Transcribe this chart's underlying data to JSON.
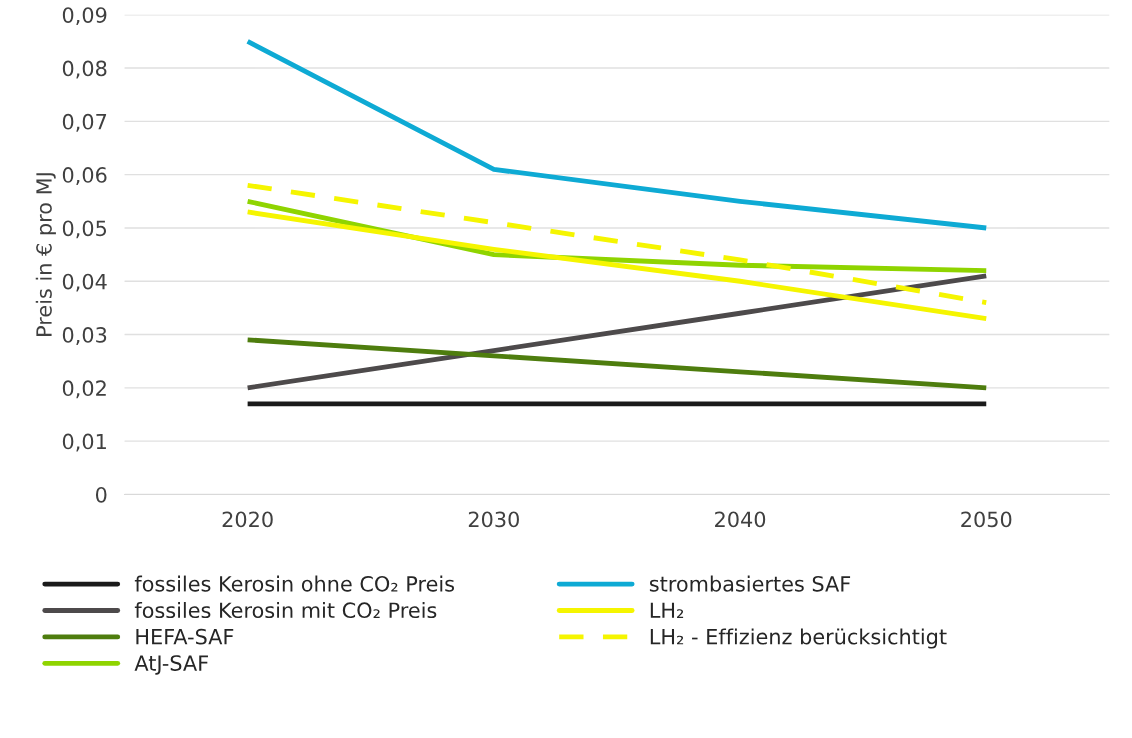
{
  "chart_data": {
    "type": "line",
    "ylabel": "Preis in € pro MJ",
    "categories": [
      "2020",
      "2030",
      "2040",
      "2050"
    ],
    "series": [
      {
        "name": "fossiles Kerosin ohne CO₂ Preis",
        "color": "#1a1a1a",
        "values": [
          0.017,
          0.017,
          0.017,
          0.017
        ]
      },
      {
        "name": "fossiles Kerosin mit CO₂ Preis",
        "color": "#4d4a4b",
        "values": [
          0.02,
          0.027,
          0.034,
          0.041
        ]
      },
      {
        "name": "HEFA-SAF",
        "color": "#4e7d0e",
        "values": [
          0.029,
          0.026,
          0.023,
          0.02
        ]
      },
      {
        "name": "AtJ-SAF",
        "color": "#8fd400",
        "values": [
          0.055,
          0.045,
          0.043,
          0.042
        ]
      },
      {
        "name": "strombasiertes SAF",
        "color": "#0eaad4",
        "values": [
          0.085,
          0.061,
          0.055,
          0.05
        ]
      },
      {
        "name": "LH₂",
        "color": "#f5f500",
        "values": [
          0.053,
          0.046,
          0.04,
          0.033
        ]
      },
      {
        "name": "LH₂ - Effizienz berücksichtigt",
        "color": "#f5f500",
        "line_style": "dashed",
        "values": [
          0.058,
          0.051,
          0.044,
          0.036
        ]
      }
    ],
    "ylim": [
      0,
      0.09
    ],
    "yticks": [
      {
        "value": 0,
        "label": "0"
      },
      {
        "value": 0.01,
        "label": "0,01"
      },
      {
        "value": 0.02,
        "label": "0,02"
      },
      {
        "value": 0.03,
        "label": "0,03"
      },
      {
        "value": 0.04,
        "label": "0,04"
      },
      {
        "value": 0.05,
        "label": "0,05"
      },
      {
        "value": 0.06,
        "label": "0,06"
      },
      {
        "value": 0.07,
        "label": "0,07"
      },
      {
        "value": 0.08,
        "label": "0,08"
      },
      {
        "value": 0.09,
        "label": "0,09"
      }
    ],
    "grid": "y",
    "legend": "bottom",
    "marker": "none",
    "line_style": "solid"
  }
}
